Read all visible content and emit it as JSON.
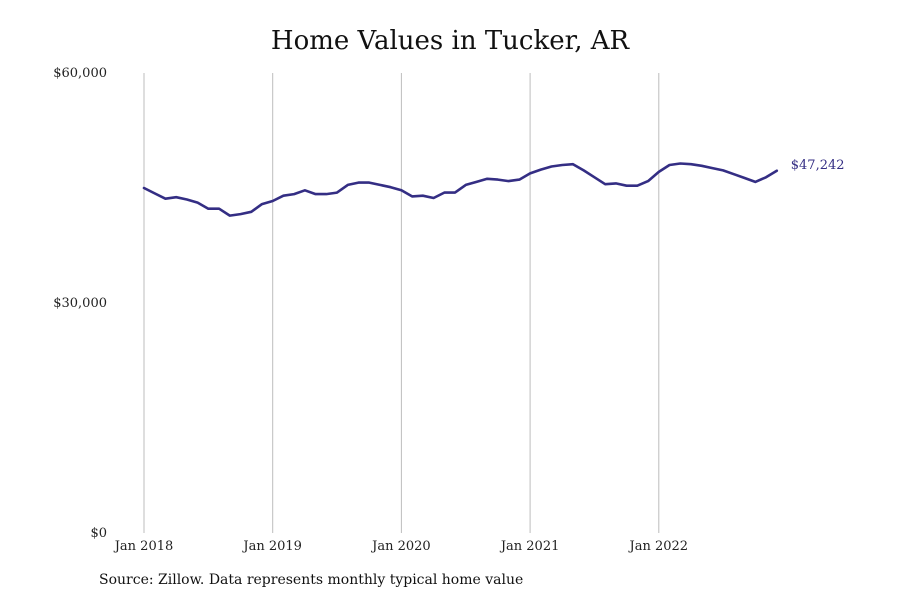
{
  "chart_data": {
    "type": "line",
    "title": "Home Values in Tucker, AR",
    "xlabel": "",
    "ylabel": "",
    "ylim": [
      0,
      60000
    ],
    "yticks": [
      0,
      30000,
      60000
    ],
    "ytick_labels": [
      "$0",
      "$30,000",
      "$60,000"
    ],
    "xlim": [
      "2018-01",
      "2022-12"
    ],
    "xticks": [
      "2018-01",
      "2019-01",
      "2020-01",
      "2021-01",
      "2022-01"
    ],
    "xtick_labels": [
      "Jan 2018",
      "Jan 2019",
      "Jan 2020",
      "Jan 2021",
      "Jan 2022"
    ],
    "grid": "vertical",
    "line_color": "#342e84",
    "end_label": "$47,242",
    "series": [
      {
        "x": [
          "2018-01",
          "2018-02",
          "2018-03",
          "2018-04",
          "2018-05",
          "2018-06",
          "2018-07",
          "2018-08",
          "2018-09",
          "2018-10",
          "2018-11",
          "2018-12",
          "2019-01",
          "2019-02",
          "2019-03",
          "2019-04",
          "2019-05",
          "2019-06",
          "2019-07",
          "2019-08",
          "2019-09",
          "2019-10",
          "2019-11",
          "2019-12",
          "2020-01",
          "2020-02",
          "2020-03",
          "2020-04",
          "2020-05",
          "2020-06",
          "2020-07",
          "2020-08",
          "2020-09",
          "2020-10",
          "2020-11",
          "2020-12",
          "2021-01",
          "2021-02",
          "2021-03",
          "2021-04",
          "2021-05",
          "2021-06",
          "2021-07",
          "2021-08",
          "2021-09",
          "2021-10",
          "2021-11",
          "2021-12",
          "2022-01",
          "2022-02",
          "2022-03",
          "2022-04",
          "2022-05",
          "2022-06",
          "2022-07",
          "2022-08",
          "2022-09",
          "2022-10",
          "2022-11",
          "2022-12"
        ],
        "values": [
          45000,
          44300,
          43600,
          43800,
          43500,
          43100,
          42300,
          42300,
          41400,
          41600,
          41900,
          42900,
          43300,
          44000,
          44200,
          44700,
          44200,
          44200,
          44400,
          45400,
          45700,
          45700,
          45400,
          45100,
          44700,
          43900,
          44000,
          43700,
          44400,
          44400,
          45400,
          45800,
          46200,
          46100,
          45900,
          46100,
          46900,
          47400,
          47800,
          48000,
          48100,
          47300,
          46400,
          45500,
          45600,
          45300,
          45300,
          45900,
          47100,
          48000,
          48200,
          48100,
          47900,
          47600,
          47300,
          46800,
          46300,
          45800,
          46400,
          47242
        ]
      }
    ]
  },
  "source": "Source: Zillow. Data represents monthly typical home value"
}
